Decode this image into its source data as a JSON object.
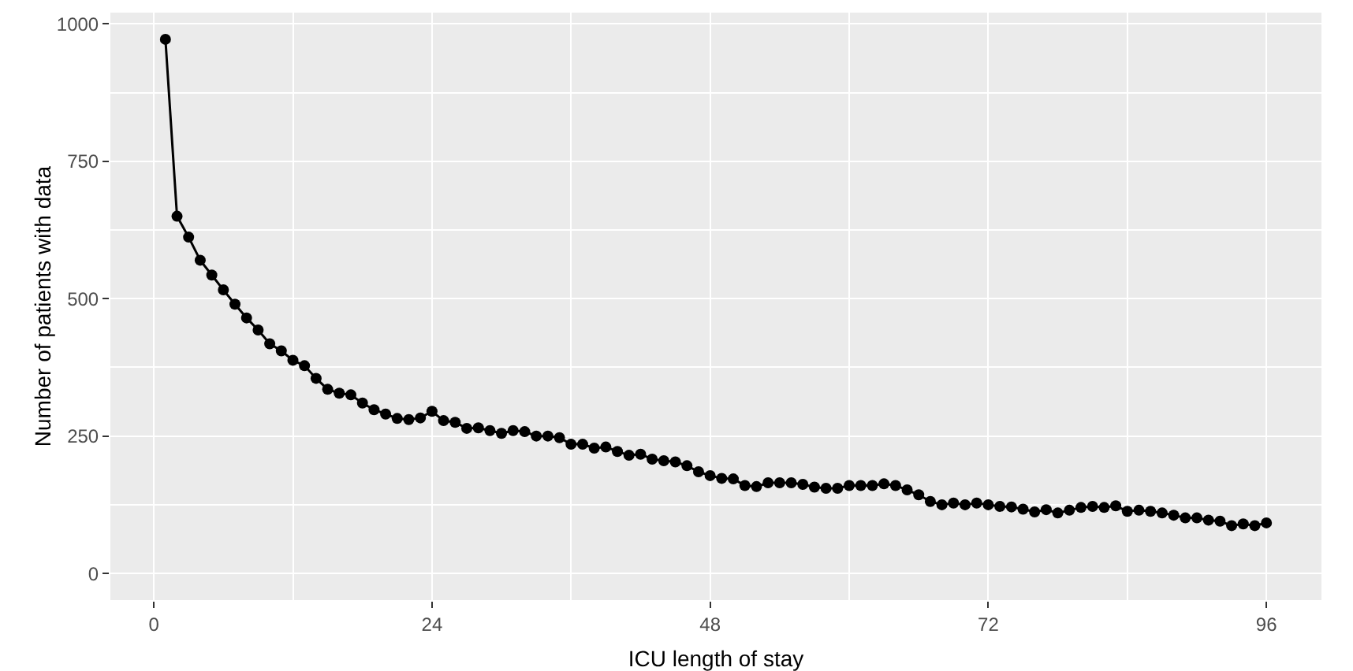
{
  "chart_data": {
    "type": "line",
    "xlabel": "ICU length of stay",
    "ylabel": "Number of patients with data",
    "x": [
      1,
      2,
      3,
      4,
      5,
      6,
      7,
      8,
      9,
      10,
      11,
      12,
      13,
      14,
      15,
      16,
      17,
      18,
      19,
      20,
      21,
      22,
      23,
      24,
      25,
      26,
      27,
      28,
      29,
      30,
      31,
      32,
      33,
      34,
      35,
      36,
      37,
      38,
      39,
      40,
      41,
      42,
      43,
      44,
      45,
      46,
      47,
      48,
      49,
      50,
      51,
      52,
      53,
      54,
      55,
      56,
      57,
      58,
      59,
      60,
      61,
      62,
      63,
      64,
      65,
      66,
      67,
      68,
      69,
      70,
      71,
      72,
      73,
      74,
      75,
      76,
      77,
      78,
      79,
      80,
      81,
      82,
      83,
      84,
      85,
      86,
      87,
      88,
      89,
      90,
      91,
      92,
      93,
      94,
      95,
      96
    ],
    "series": [
      {
        "color": "#000000",
        "values": [
          972,
          650,
          612,
          570,
          543,
          516,
          490,
          465,
          443,
          418,
          405,
          388,
          378,
          355,
          335,
          328,
          325,
          310,
          298,
          290,
          282,
          280,
          283,
          295,
          278,
          275,
          264,
          265,
          260,
          255,
          260,
          258,
          250,
          250,
          247,
          235,
          235,
          228,
          230,
          222,
          215,
          217,
          208,
          205,
          203,
          196,
          185,
          178,
          173,
          172,
          160,
          158,
          165,
          165,
          165,
          162,
          157,
          155,
          155,
          160,
          160,
          160,
          163,
          160,
          152,
          143,
          131,
          125,
          128,
          125,
          128,
          125,
          122,
          121,
          117,
          112,
          116,
          110,
          115,
          120,
          122,
          120,
          123,
          113,
          115,
          113,
          110,
          106,
          101,
          101,
          97,
          95,
          87,
          90,
          87,
          92
        ]
      }
    ],
    "xlim": [
      -3.75,
      100.75
    ],
    "ylim": [
      -48.6,
      1020.6
    ],
    "xticks": [
      0,
      24,
      48,
      72,
      96
    ],
    "yticks": [
      0,
      250,
      500,
      750,
      1000
    ],
    "grid": true,
    "marker": "circle",
    "line_style": "solid"
  }
}
